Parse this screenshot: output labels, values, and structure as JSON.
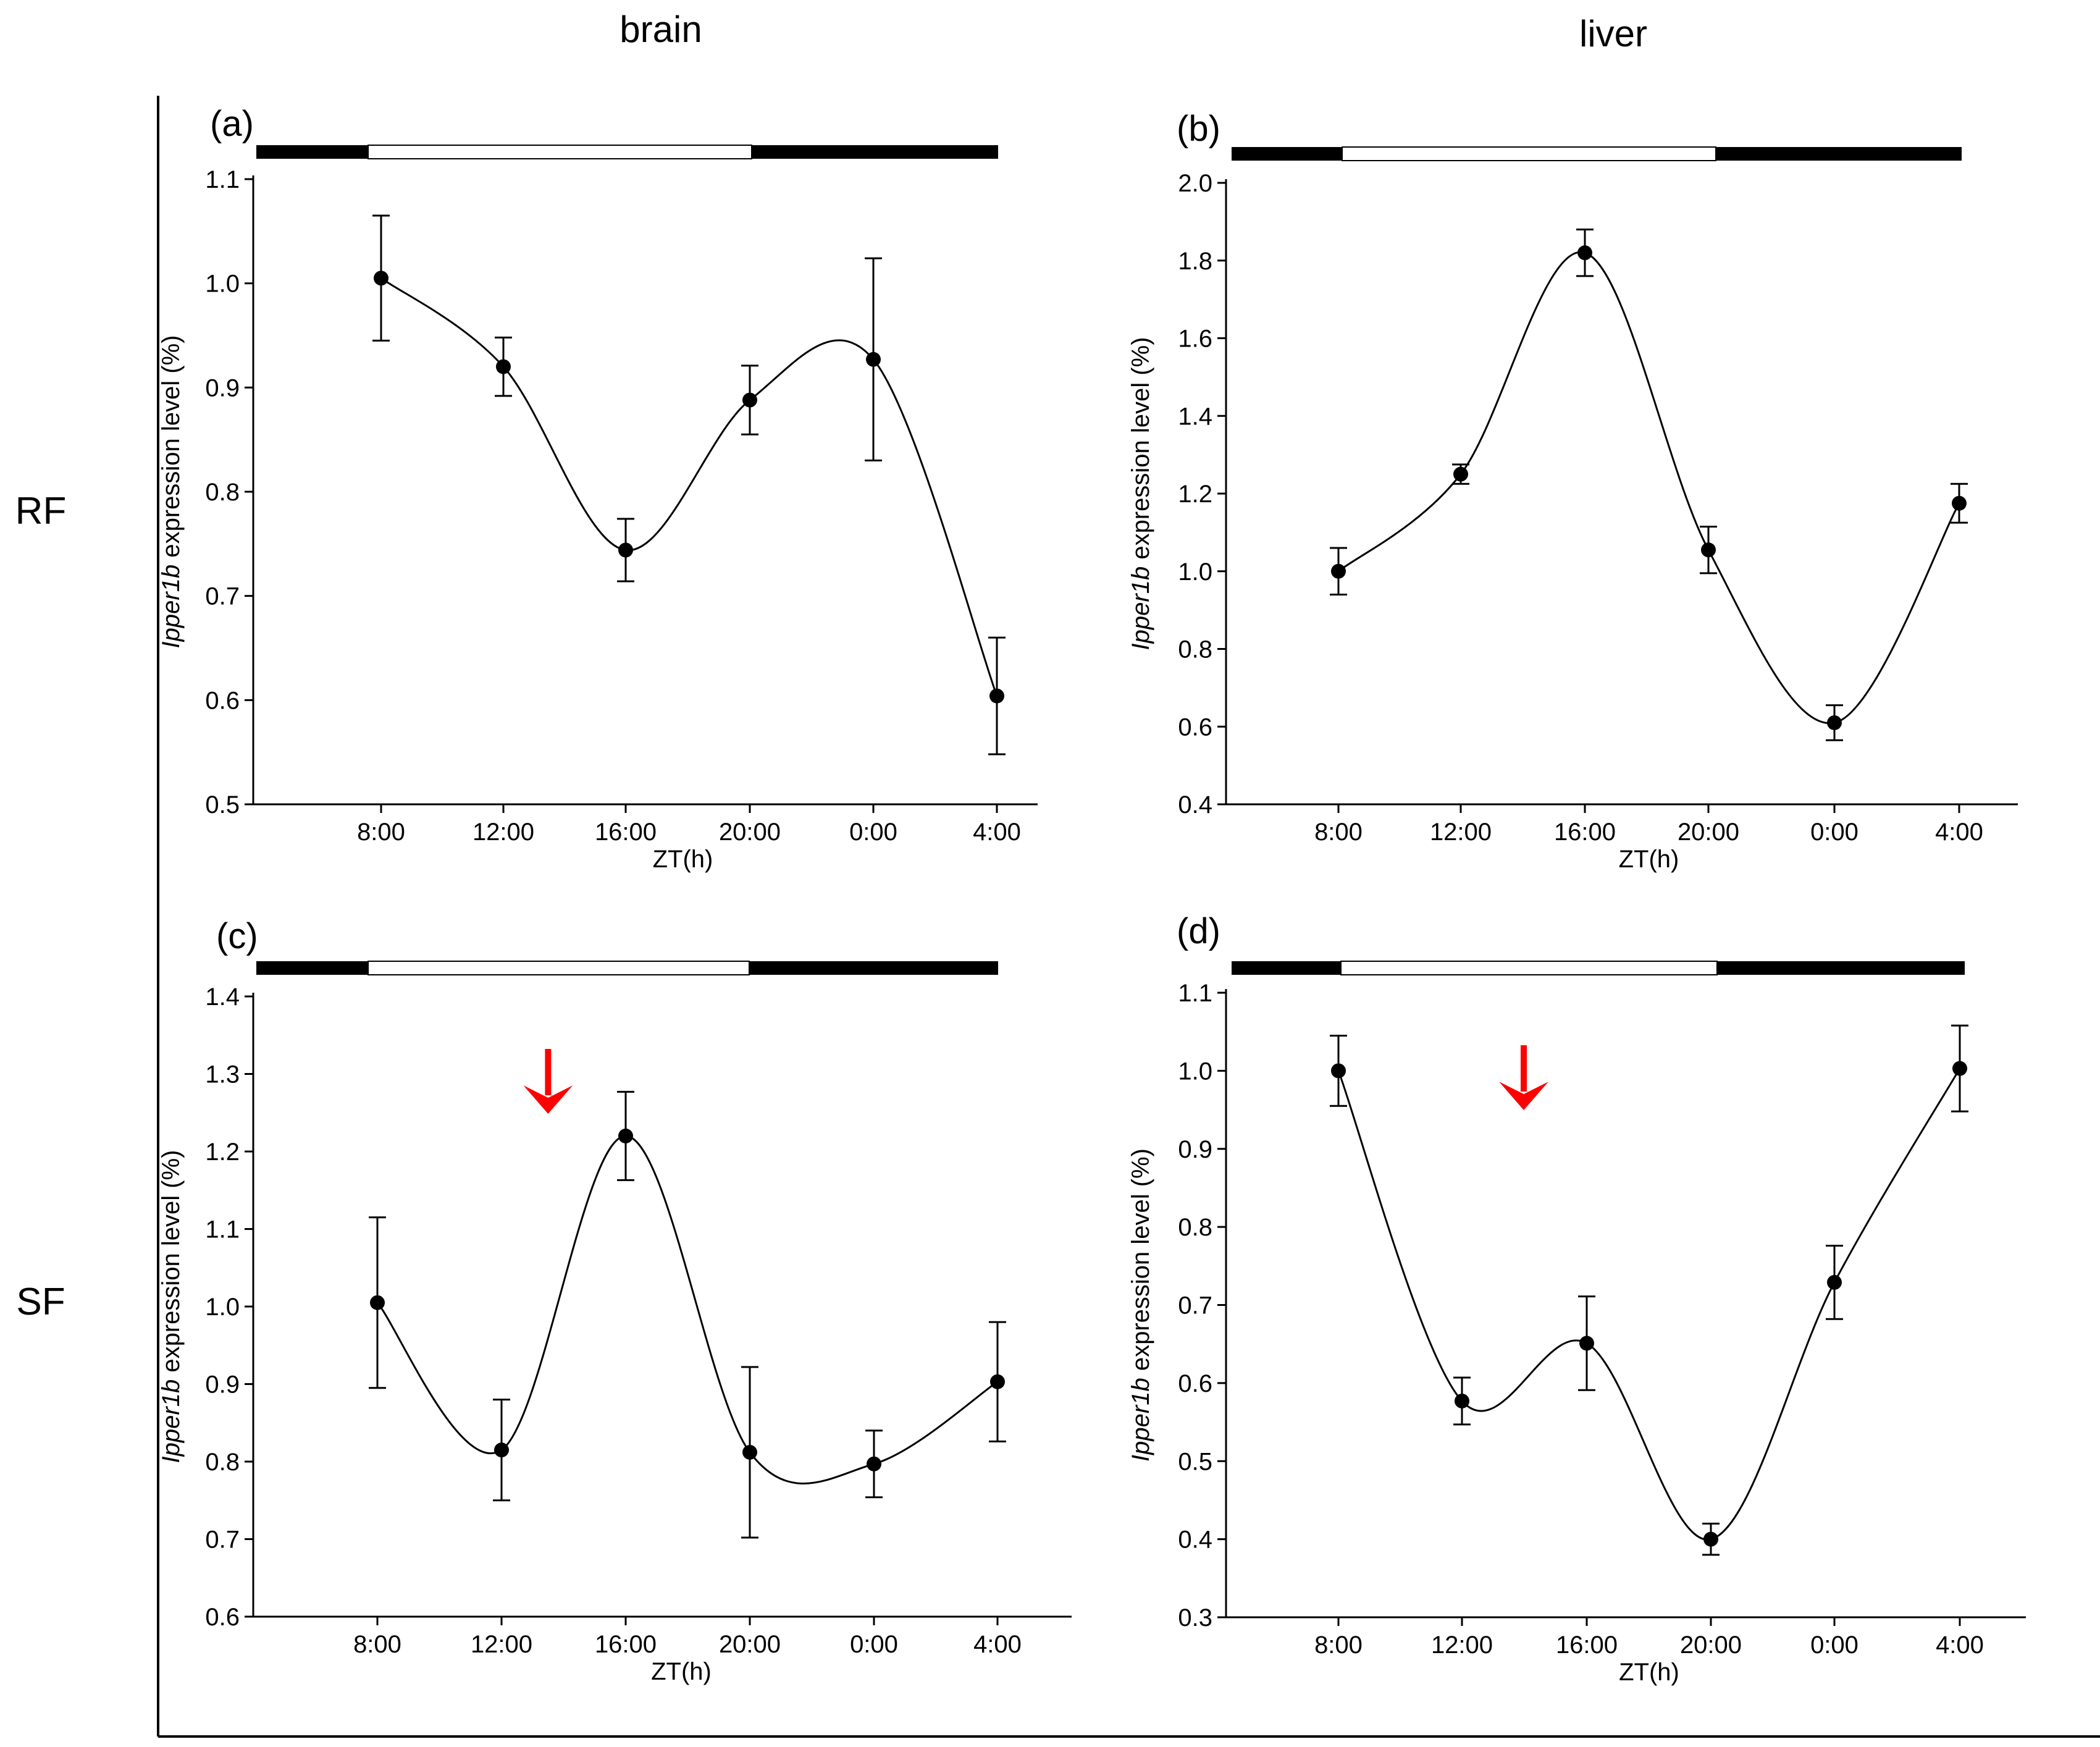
{
  "headers": {
    "col1": "brain",
    "col2": "liver",
    "row1": "RF",
    "row2": "SF"
  },
  "colors": {
    "line": "#000000",
    "light_bar": "#ffffff",
    "dark_bar": "#000000",
    "arrow": "#ff0000"
  },
  "chart_data": [
    {
      "id": "a",
      "label": "(a)",
      "type": "line",
      "x": [
        "8:00",
        "12:00",
        "16:00",
        "20:00",
        "0:00",
        "4:00"
      ],
      "values": [
        1.005,
        0.92,
        0.744,
        0.888,
        0.927,
        0.604
      ],
      "error": [
        0.06,
        0.028,
        0.03,
        0.033,
        0.097,
        0.056
      ],
      "ylim": [
        0.5,
        1.1
      ],
      "yticks": [
        "0.5",
        "0.6",
        "0.7",
        "0.8",
        "0.9",
        "1.0",
        "1.1"
      ],
      "xlabel": "ZT(h)",
      "ylabel_gene": "Ipper1b",
      "ylabel_rest": " expression level (%)",
      "arrow": null
    },
    {
      "id": "b",
      "label": "(b)",
      "type": "line",
      "x": [
        "8:00",
        "12:00",
        "16:00",
        "20:00",
        "0:00",
        "4:00"
      ],
      "values": [
        1.0,
        1.25,
        1.82,
        1.055,
        0.61,
        1.175
      ],
      "error": [
        0.06,
        0.025,
        0.06,
        0.06,
        0.045,
        0.05
      ],
      "ylim": [
        0.4,
        2.0
      ],
      "yticks": [
        "0.4",
        "0.6",
        "0.8",
        "1.0",
        "1.2",
        "1.4",
        "1.6",
        "1.8",
        "2.0"
      ],
      "xlabel": "ZT(h)",
      "ylabel_gene": "Ipper1b",
      "ylabel_rest": " expression level (%)",
      "arrow": null
    },
    {
      "id": "c",
      "label": "(c)",
      "type": "line",
      "x": [
        "8:00",
        "12:00",
        "16:00",
        "20:00",
        "0:00",
        "4:00"
      ],
      "values": [
        1.005,
        0.815,
        1.22,
        0.812,
        0.797,
        0.903
      ],
      "error": [
        0.11,
        0.065,
        0.057,
        0.11,
        0.043,
        0.077
      ],
      "ylim": [
        0.6,
        1.4
      ],
      "yticks": [
        "0.6",
        "0.7",
        "0.8",
        "0.9",
        "1.0",
        "1.1",
        "1.2",
        "1.3",
        "1.4"
      ],
      "xlabel": "ZT(h)",
      "ylabel_gene": "Ipper1b",
      "ylabel_rest": " expression level (%)",
      "arrow": {
        "x_hours": 13.5
      }
    },
    {
      "id": "d",
      "label": "(d)",
      "type": "line",
      "x": [
        "8:00",
        "12:00",
        "16:00",
        "20:00",
        "0:00",
        "4:00"
      ],
      "values": [
        1.0,
        0.577,
        0.651,
        0.4,
        0.729,
        1.003
      ],
      "error": [
        0.045,
        0.03,
        0.06,
        0.02,
        0.047,
        0.055
      ],
      "ylim": [
        0.3,
        1.1
      ],
      "yticks": [
        "0.3",
        "0.4",
        "0.5",
        "0.6",
        "0.7",
        "0.8",
        "0.9",
        "1.0",
        "1.1"
      ],
      "xlabel": "ZT(h)",
      "ylabel_gene": "Ipper1b",
      "ylabel_rest": " expression level (%)",
      "arrow": {
        "x_hours": 14.0
      }
    }
  ]
}
